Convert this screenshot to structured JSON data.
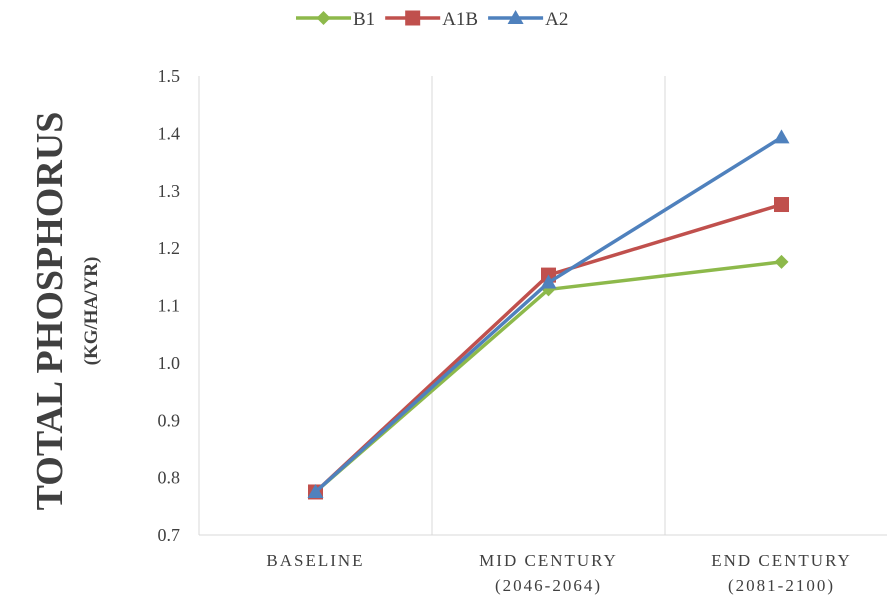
{
  "chart_data": {
    "type": "line",
    "title": "",
    "ylabel": "TOTAL PHOSPHORUS",
    "ylabel_unit": "(KG/HA/YR)",
    "xlabel": "",
    "categories": [
      {
        "line1": "BASELINE",
        "line2": ""
      },
      {
        "line1": "MID CENTURY",
        "line2": "(2046-2064)"
      },
      {
        "line1": "END CENTURY",
        "line2": "(2081-2100)"
      }
    ],
    "ylim": [
      0.7,
      1.5
    ],
    "yticks": [
      "0.7",
      "0.8",
      "0.9",
      "1.0",
      "1.1",
      "1.2",
      "1.3",
      "1.4",
      "1.5"
    ],
    "grid": "vertical",
    "legend_position": "top",
    "series": [
      {
        "name": "B1",
        "values": [
          0.775,
          1.128,
          1.176
        ],
        "color": "#8DB94B",
        "marker": "diamond"
      },
      {
        "name": "A1B",
        "values": [
          0.775,
          1.153,
          1.276
        ],
        "color": "#C0504D",
        "marker": "square"
      },
      {
        "name": "A2",
        "values": [
          0.775,
          1.14,
          1.393
        ],
        "color": "#4F81BD",
        "marker": "triangle"
      }
    ]
  }
}
